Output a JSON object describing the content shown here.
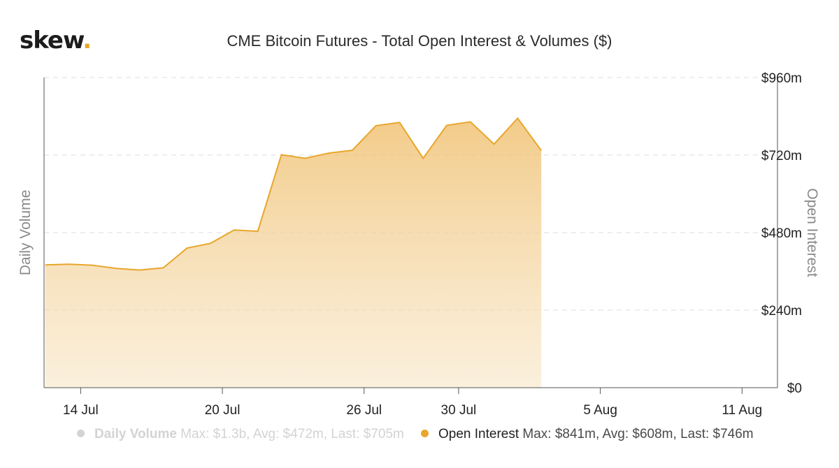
{
  "brand": {
    "name": "skew",
    "dot": "."
  },
  "chart_data": {
    "type": "area",
    "title": "CME Bitcoin Futures - Total Open Interest & Volumes ($)",
    "y_left_label": "Daily Volume",
    "y_right_label": "Open Interest",
    "y_right_ticks": [
      "$0",
      "$240m",
      "$480m",
      "$720m",
      "$960m"
    ],
    "y_range": [
      0,
      960
    ],
    "x_ticks": [
      "14 Jul",
      "20 Jul",
      "26 Jul",
      "30 Jul",
      "5 Aug",
      "11 Aug"
    ],
    "x_tick_days": [
      2,
      8,
      14,
      18,
      24,
      30
    ],
    "x_range": [
      0.45,
      31.5
    ],
    "grid": "horizontal-dashed",
    "legend_position": "bottom",
    "series": [
      {
        "name": "Open Interest",
        "unit": "$m",
        "color": "#e8a62b",
        "days": [
          0.5,
          1.5,
          2.5,
          3.5,
          4.5,
          5.5,
          6.5,
          7.5,
          8.5,
          9.5,
          10.5,
          11.5,
          12.5,
          13.5,
          14.5,
          15.5,
          16.5,
          17.5,
          18.5,
          19.5,
          20.5,
          21.5,
          22.5,
          23.5,
          24.5,
          25.5,
          26.5,
          27.5
        ],
        "values": [
          380,
          382,
          379,
          369,
          364,
          371,
          432,
          447,
          488,
          484,
          721,
          710,
          726,
          735,
          811,
          821,
          710,
          812,
          823,
          754,
          834,
          734,
          0,
          0,
          0,
          0,
          0,
          0
        ]
      },
      {
        "name": "Daily Volume",
        "color": "#d3d3d3",
        "hidden": true
      }
    ]
  },
  "legend": {
    "volume": {
      "name": "Daily Volume",
      "stats": "Max: $1.3b, Avg: $472m, Last: $705m"
    },
    "oi": {
      "name": "Open Interest",
      "stats": "Max: $841m, Avg: $608m, Last: $746m"
    }
  }
}
